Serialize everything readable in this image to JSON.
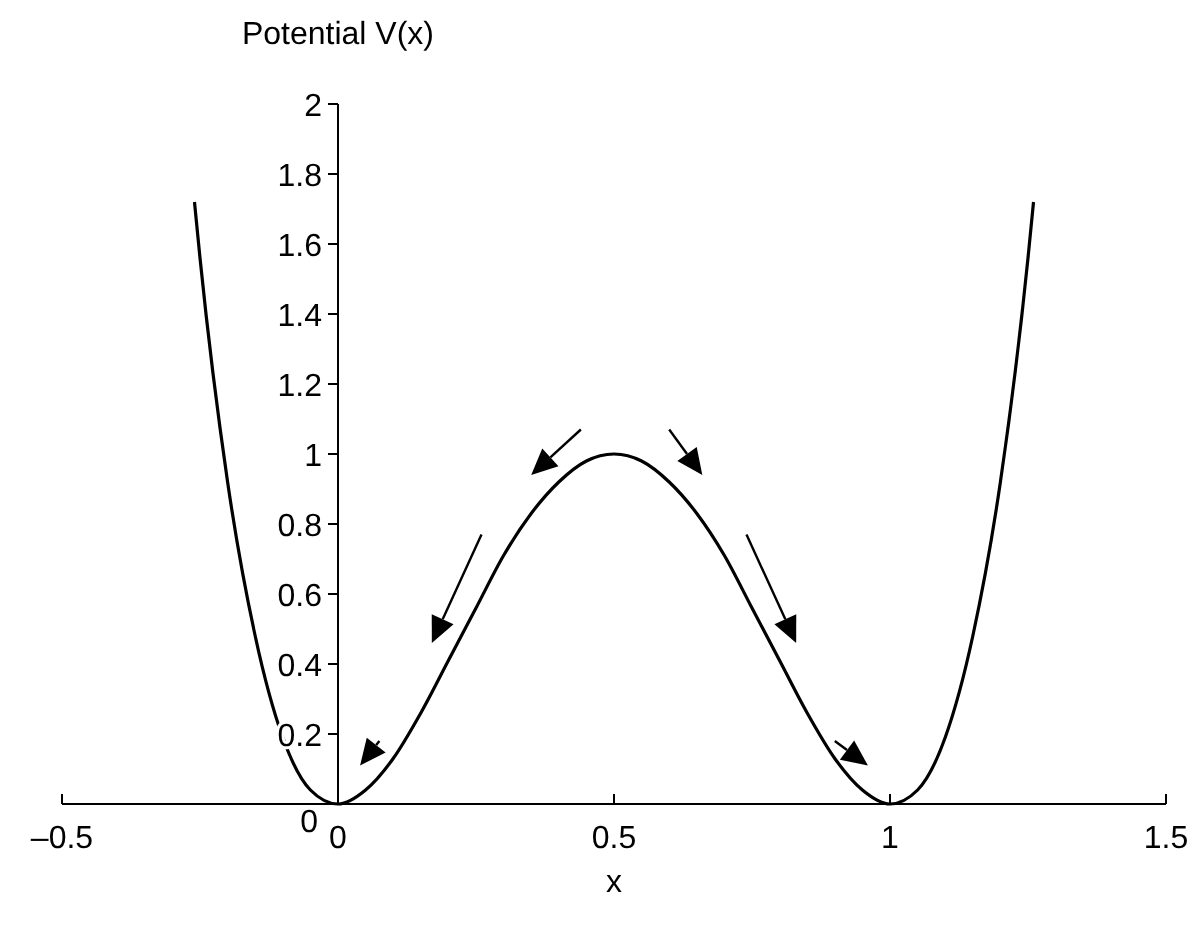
{
  "chart_data": {
    "type": "line",
    "ylabel": "Potential V(x)",
    "xlabel": "x",
    "x": [
      -0.26,
      -0.25,
      -0.2,
      -0.15,
      -0.1,
      -0.05,
      0,
      0.05,
      0.1,
      0.15,
      0.2,
      0.25,
      0.3,
      0.35,
      0.4,
      0.45,
      0.5,
      0.55,
      0.6,
      0.65,
      0.7,
      0.75,
      0.8,
      0.85,
      0.9,
      0.95,
      1,
      1.05,
      1.1,
      1.15,
      1.2,
      1.25,
      1.26
    ],
    "series": [
      {
        "color": "#000000",
        "values": [
          1.72,
          1.56,
          0.92,
          0.48,
          0.19,
          0.04,
          0,
          0.04,
          0.13,
          0.26,
          0.41,
          0.56,
          0.71,
          0.83,
          0.92,
          0.98,
          1,
          0.98,
          0.92,
          0.83,
          0.71,
          0.56,
          0.41,
          0.26,
          0.13,
          0.04,
          0,
          0.04,
          0.19,
          0.48,
          0.92,
          1.56,
          1.72
        ]
      }
    ],
    "xlim": [
      -0.5,
      1.5
    ],
    "xticks": [
      {
        "value": -0.5,
        "label": "–0.5"
      },
      0,
      0.5,
      1,
      1.5
    ],
    "ylim": [
      0,
      2
    ],
    "yticks": [
      0,
      0.2,
      0.4,
      0.6,
      0.8,
      1,
      1.2,
      1.4,
      1.6,
      1.8,
      2
    ],
    "grid": false,
    "marker": "none",
    "line_style": "solid"
  }
}
